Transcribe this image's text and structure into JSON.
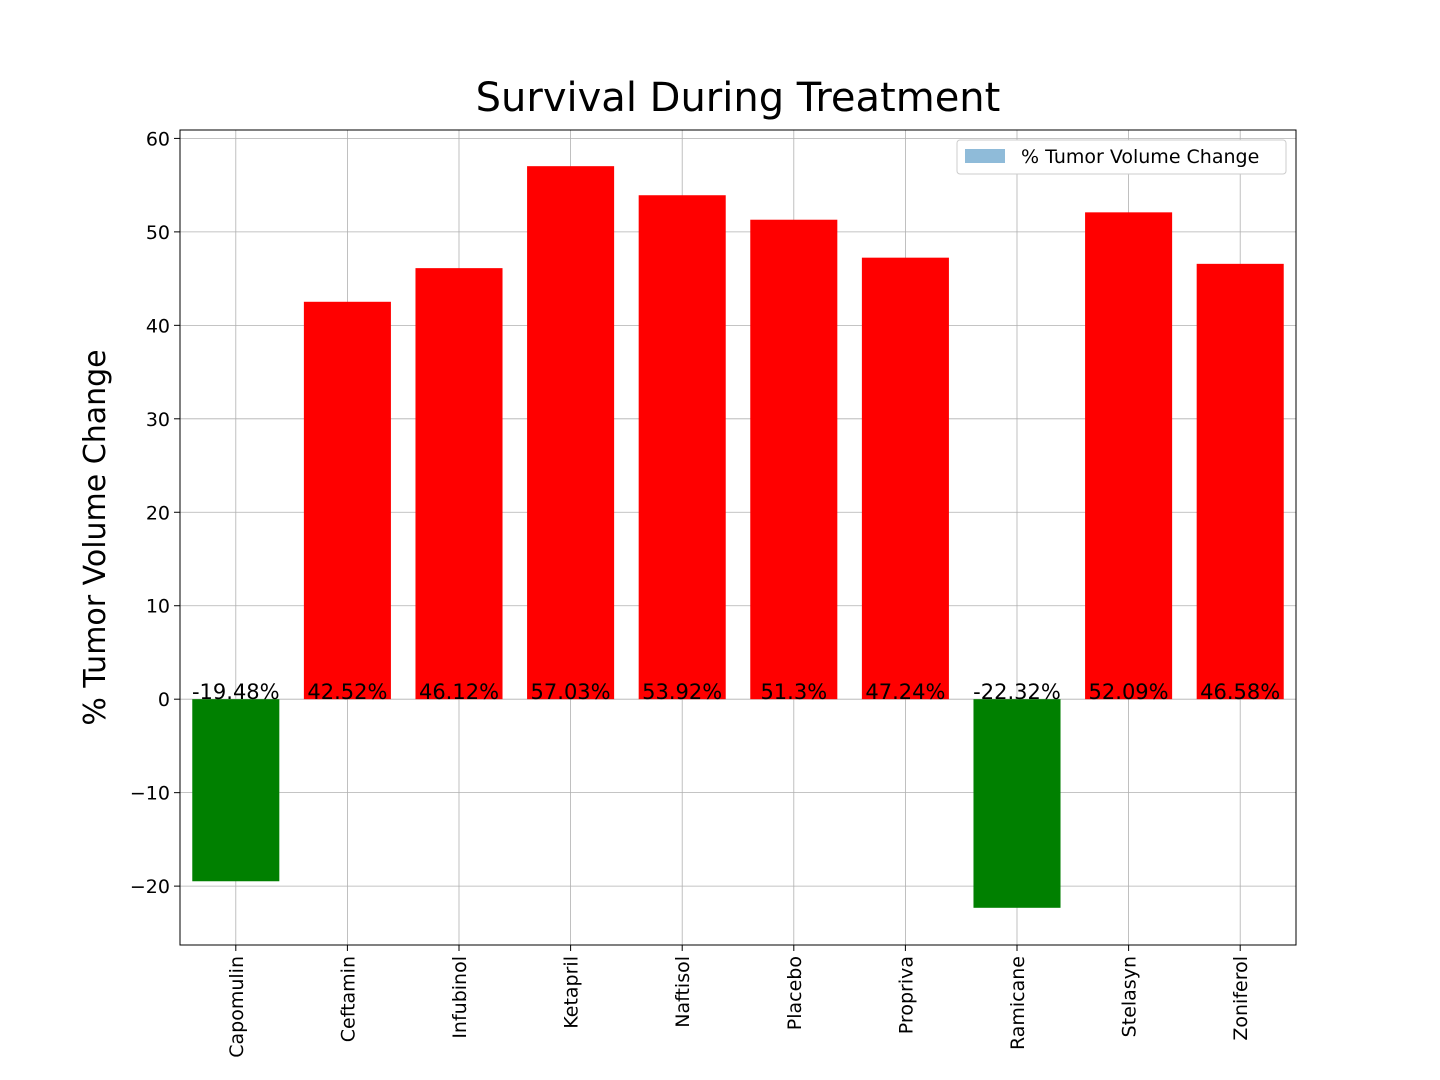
{
  "chart_data": {
    "type": "bar",
    "title": "Survival During Treatment",
    "xlabel": "",
    "ylabel": "% Tumor Volume Change",
    "categories": [
      "Capomulin",
      "Ceftamin",
      "Infubinol",
      "Ketapril",
      "Naftisol",
      "Placebo",
      "Propriva",
      "Ramicane",
      "Stelasyn",
      "Zoniferol"
    ],
    "values": [
      -19.48,
      42.52,
      46.12,
      57.03,
      53.92,
      51.3,
      47.24,
      -22.32,
      52.09,
      46.58
    ],
    "data_labels": [
      "-19.48%",
      "42.52%",
      "46.12%",
      "57.03%",
      "53.92%",
      "51.3%",
      "47.24%",
      "-22.32%",
      "52.09%",
      "46.58%"
    ],
    "ylim": [
      -26.3,
      60.9
    ],
    "yticks": [
      -20,
      -10,
      0,
      10,
      20,
      30,
      40,
      50,
      60
    ],
    "ytick_labels": [
      "−20",
      "−10",
      "0",
      "10",
      "20",
      "30",
      "40",
      "50",
      "60"
    ],
    "grid": true,
    "legend": {
      "label": "% Tumor Volume Change",
      "placement": "top-right",
      "swatch_color": "#8fbbd9"
    },
    "colors": {
      "positive": "#ff0000",
      "negative": "#008000"
    }
  }
}
